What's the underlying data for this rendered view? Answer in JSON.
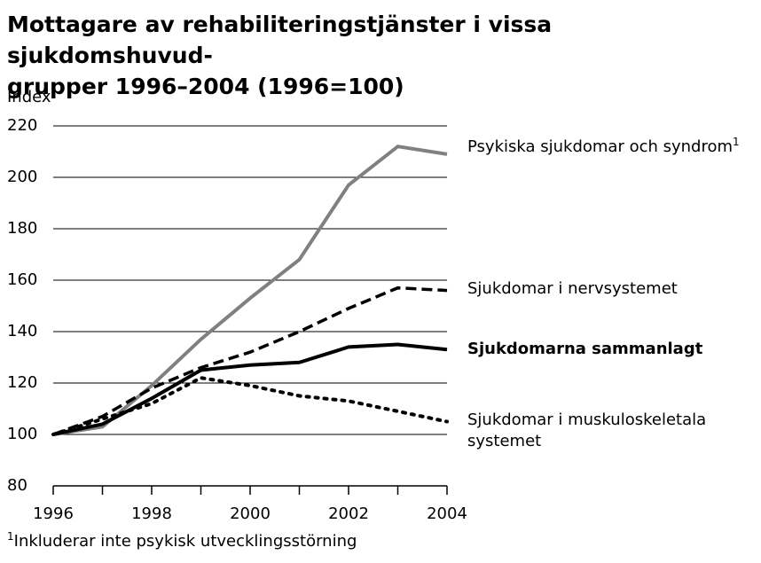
{
  "chart_data": {
    "type": "line",
    "title": [
      "Mottagare av rehabiliteringstjänster i vissa sjukdomshuvud-",
      "grupper 1996–2004 (1996=100)"
    ],
    "ylabel": "Index",
    "x": [
      1996,
      1997,
      1998,
      1999,
      2000,
      2001,
      2002,
      2003,
      2004
    ],
    "xlim": [
      1996,
      2004
    ],
    "xticks": [
      1996,
      1998,
      2000,
      2002,
      2004
    ],
    "x_minor_ticks": [
      1997,
      1999,
      2001,
      2003
    ],
    "ylim": [
      80,
      220
    ],
    "yticks": [
      80,
      100,
      120,
      140,
      160,
      180,
      200,
      220
    ],
    "grid": true,
    "series": [
      {
        "name": "Psykiska sjukdomar och syndrom",
        "footnote_marker": "1",
        "color": "#808080",
        "width": 4,
        "dash": "solid",
        "bold": false,
        "values": [
          100,
          103,
          119,
          137,
          153,
          168,
          197,
          212,
          209
        ]
      },
      {
        "name": "Sjukdomar i nervsystemet",
        "color": "#000000",
        "width": 3.5,
        "dash": "dashed",
        "bold": false,
        "values": [
          100,
          107,
          118,
          126,
          132,
          140,
          149,
          157,
          156
        ]
      },
      {
        "name": "Sjukdomarna sammanlagt",
        "color": "#000000",
        "width": 4,
        "dash": "solid",
        "bold": true,
        "values": [
          100,
          104,
          114,
          125,
          127,
          128,
          134,
          135,
          133
        ]
      },
      {
        "name": "Sjukdomar i muskuloskeletala systemet",
        "color": "#000000",
        "width": 4,
        "dash": "dotted",
        "bold": false,
        "values": [
          100,
          106,
          112,
          122,
          119,
          115,
          113,
          109,
          105
        ]
      }
    ],
    "footnote": {
      "marker": "1",
      "text": "Inkluderar inte psykisk utvecklingsstörning"
    }
  }
}
